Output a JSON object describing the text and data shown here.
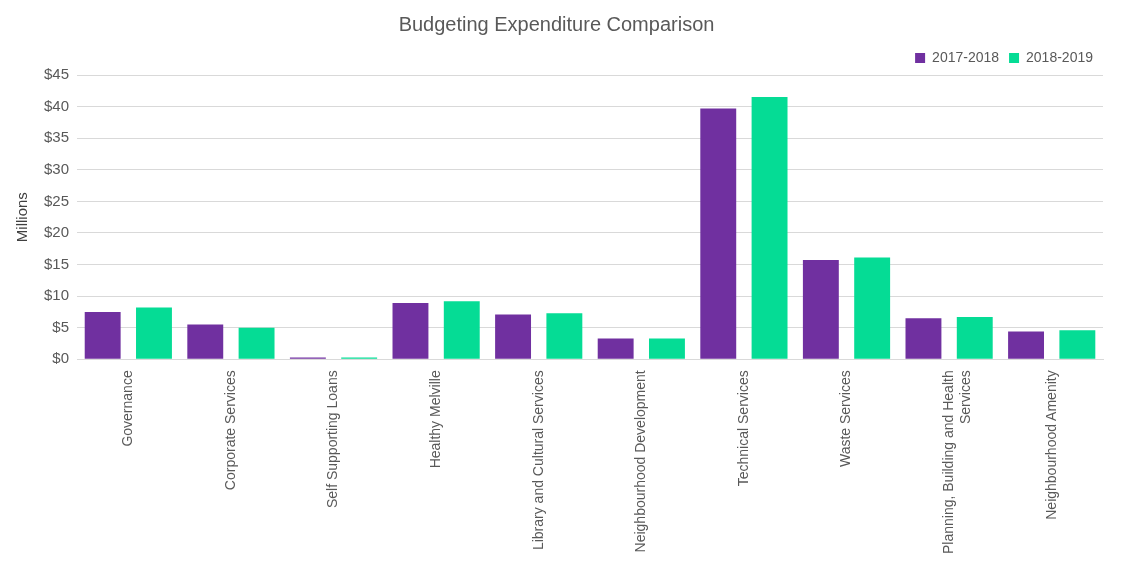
{
  "chart_data": {
    "type": "bar",
    "title": "Budgeting Expenditure Comparison",
    "ylabel": "Millions",
    "categories": [
      "Governance",
      "Corporate Services",
      "Self Supporting Loans",
      "Healthy Melville",
      "Library and Cultural Services",
      "Neighbourhood Development",
      "Technical Services",
      "Waste Services",
      "Planning, Building and Health Services",
      "Neighbourhood Amenity"
    ],
    "series": [
      {
        "name": "2017-2018",
        "color": "#7030a0",
        "values": [
          7.5,
          5.5,
          0.3,
          8.9,
          7.1,
          3.3,
          39.7,
          15.7,
          6.5,
          4.4
        ]
      },
      {
        "name": "2018-2019",
        "color": "#05dc95",
        "values": [
          8.2,
          5.0,
          0.3,
          9.2,
          7.3,
          3.3,
          41.5,
          16.1,
          6.7,
          4.6
        ]
      }
    ],
    "ylim": [
      0,
      45
    ],
    "yticks": [
      {
        "value": 0,
        "label": "$0"
      },
      {
        "value": 5,
        "label": "$5"
      },
      {
        "value": 10,
        "label": "$10"
      },
      {
        "value": 15,
        "label": "$15"
      },
      {
        "value": 20,
        "label": "$20"
      },
      {
        "value": 25,
        "label": "$25"
      },
      {
        "value": 30,
        "label": "$30"
      },
      {
        "value": 35,
        "label": "$35"
      },
      {
        "value": 40,
        "label": "$40"
      },
      {
        "value": 45,
        "label": "$45"
      }
    ],
    "grid": "y",
    "legend": "top right"
  }
}
